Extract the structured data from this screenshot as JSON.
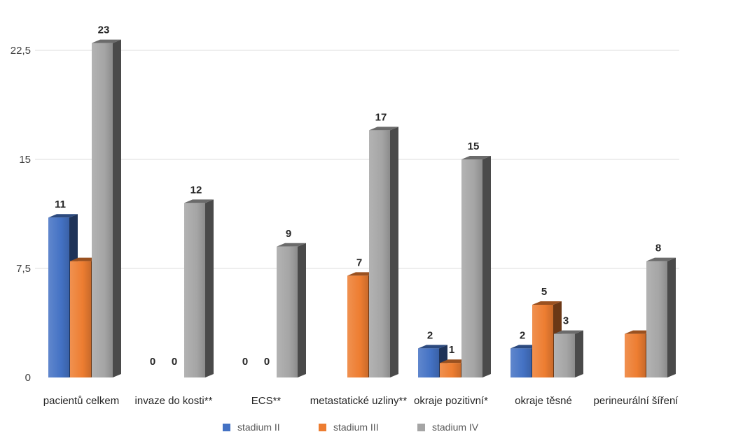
{
  "chart_data": {
    "type": "bar",
    "categories": [
      "pacientů celkem",
      "invaze do kosti**",
      "ECS**",
      "metastatické uzliny**",
      "okraje pozitivní*",
      "okraje těsné",
      "perineurální šíření"
    ],
    "series": [
      {
        "name": "stadium II",
        "color": "#4472C4",
        "values": [
          11,
          0,
          0,
          null,
          2,
          2,
          null
        ],
        "labels": [
          "11",
          "0",
          "0",
          "",
          "2",
          "2",
          ""
        ]
      },
      {
        "name": "stadium III",
        "color": "#ED7D31",
        "values": [
          8,
          0,
          0,
          7,
          1,
          5,
          3
        ],
        "labels": [
          "",
          "0",
          "0",
          "7",
          "1",
          "5",
          ""
        ]
      },
      {
        "name": "stadium IV",
        "color": "#A5A5A5",
        "values": [
          23,
          12,
          9,
          17,
          15,
          3,
          8
        ],
        "labels": [
          "23",
          "12",
          "9",
          "17",
          "15",
          "3",
          "8"
        ]
      }
    ],
    "yticks": [
      "0",
      "7,5",
      "15",
      "22,5"
    ],
    "ytick_values": [
      0,
      7.5,
      15,
      22.5
    ],
    "ylim": [
      0,
      25
    ],
    "grid": true,
    "legend_position": "bottom"
  }
}
